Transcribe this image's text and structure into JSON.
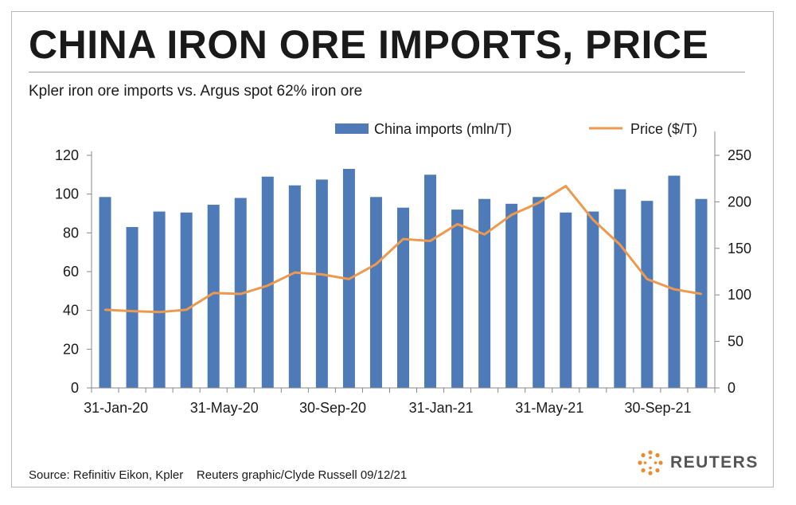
{
  "title": "CHINA IRON ORE IMPORTS, PRICE",
  "subtitle": "Kpler iron ore imports vs. Argus spot 62% iron ore",
  "footer": {
    "source": "Source: Refinitiv Eikon, Kpler    Reuters graphic/Clyde Russell 09/12/21",
    "logo_text": "REUTERS"
  },
  "colors": {
    "bars": "#4e7ab8",
    "line": "#ed9a4e",
    "axis": "#888888",
    "text": "#1a1a1a"
  },
  "chart_data": {
    "type": "bar",
    "legend_placement": "top",
    "grid": false,
    "categories": [
      "Jan-20",
      "Feb-20",
      "Mar-20",
      "Apr-20",
      "May-20",
      "Jun-20",
      "Jul-20",
      "Aug-20",
      "Sep-20",
      "Oct-20",
      "Nov-20",
      "Dec-20",
      "Jan-21",
      "Feb-21",
      "Mar-21",
      "Apr-21",
      "May-21",
      "Jun-21",
      "Jul-21",
      "Aug-21",
      "Sep-21",
      "Oct-21",
      "Nov-21"
    ],
    "x_tick_labels": [
      {
        "index": 0,
        "label": "31-Jan-20"
      },
      {
        "index": 4,
        "label": "31-May-20"
      },
      {
        "index": 8,
        "label": "30-Sep-20"
      },
      {
        "index": 12,
        "label": "31-Jan-21"
      },
      {
        "index": 16,
        "label": "31-May-21"
      },
      {
        "index": 20,
        "label": "30-Sep-21"
      }
    ],
    "series": [
      {
        "name": "China imports (mln/T)",
        "type": "bar",
        "axis": "left",
        "values": [
          98.5,
          83,
          91,
          90.5,
          94.5,
          98,
          109,
          104.5,
          107.5,
          113,
          98.5,
          93,
          110,
          92,
          97.5,
          95,
          98.5,
          90.5,
          91,
          102.5,
          96.5,
          109.5,
          97.5
        ]
      },
      {
        "name": "Price ($/T)",
        "type": "line",
        "axis": "right",
        "values": [
          84,
          82.5,
          81.5,
          84,
          102,
          101,
          110,
          124,
          122,
          117,
          133,
          160,
          158,
          176,
          165,
          186,
          199,
          217,
          181,
          154,
          117,
          106,
          101
        ]
      }
    ],
    "left_axis": {
      "ylim": [
        0,
        120
      ],
      "ticks": [
        0,
        20,
        40,
        60,
        80,
        100,
        120
      ]
    },
    "right_axis": {
      "ylim": [
        0,
        250
      ],
      "ticks": [
        0,
        50,
        100,
        150,
        200,
        250
      ]
    }
  }
}
